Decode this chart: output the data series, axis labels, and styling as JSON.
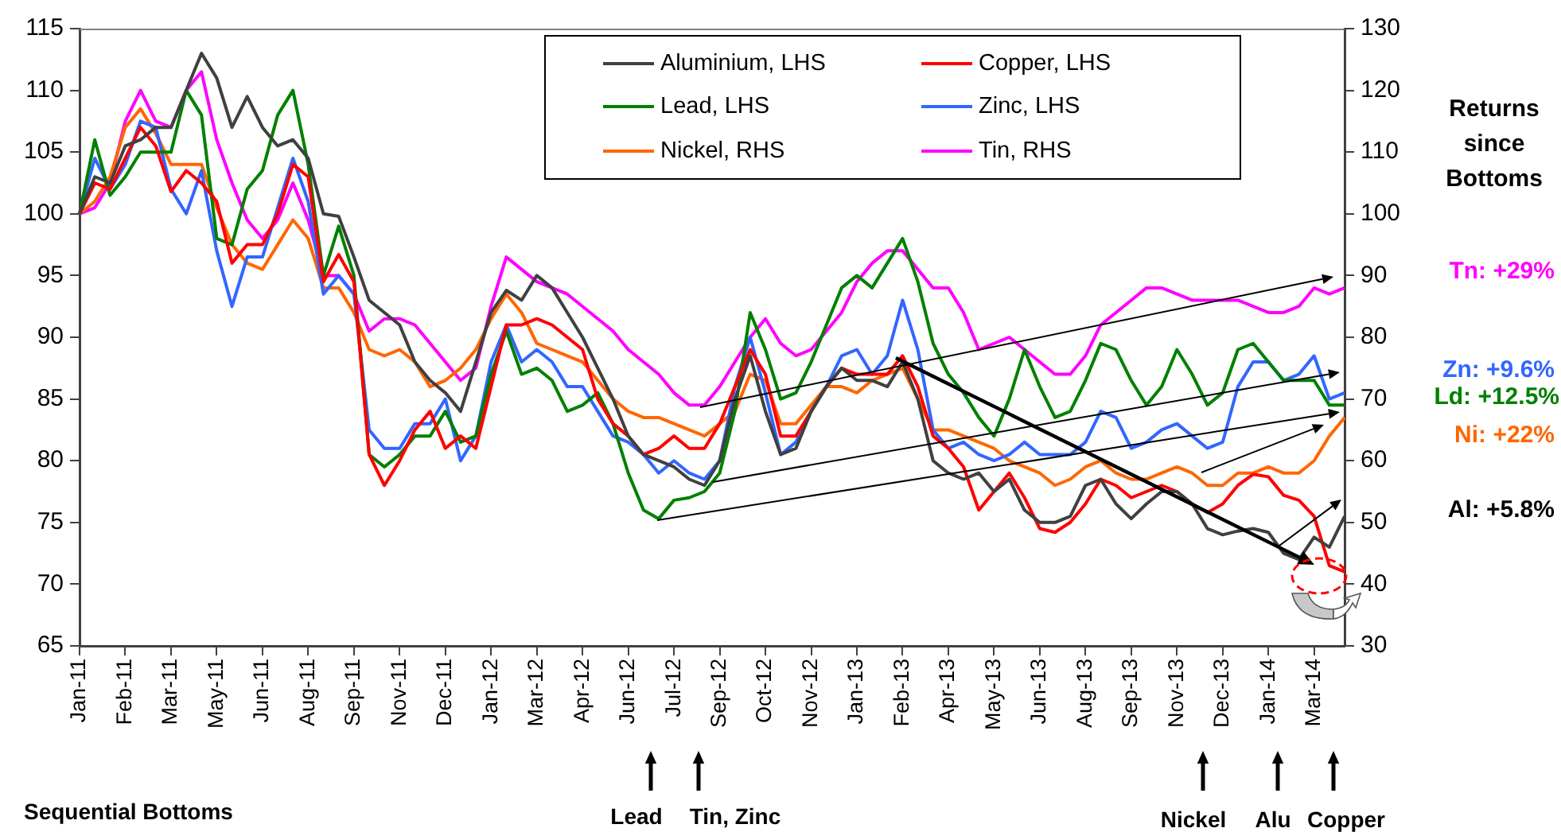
{
  "chart_data": {
    "type": "line",
    "categories": [
      "Jan-11",
      null,
      null,
      "Feb-11",
      null,
      null,
      "Mar-11",
      null,
      null,
      "May-11",
      null,
      null,
      "Jun-11",
      null,
      null,
      "Aug-11",
      null,
      null,
      "Sep-11",
      null,
      null,
      "Nov-11",
      null,
      null,
      "Dec-11",
      null,
      null,
      "Jan-12",
      null,
      null,
      "Mar-12",
      null,
      null,
      "Apr-12",
      null,
      null,
      "Jun-12",
      null,
      null,
      "Jul-12",
      null,
      null,
      "Sep-12",
      null,
      null,
      "Oct-12",
      null,
      null,
      "Nov-12",
      null,
      null,
      "Jan-13",
      null,
      null,
      "Feb-13",
      null,
      null,
      "Apr-13",
      null,
      null,
      "May-13",
      null,
      null,
      "Jun-13",
      null,
      null,
      "Aug-13",
      null,
      null,
      "Sep-13",
      null,
      null,
      "Nov-13",
      null,
      null,
      "Dec-13",
      null,
      null,
      "Jan-14",
      null,
      null,
      "Mar-14",
      null,
      null
    ],
    "series": [
      {
        "name": "Aluminium, LHS",
        "color": "#404040",
        "values": [
          100,
          103,
          102.5,
          105.5,
          106,
          107,
          107,
          110,
          113,
          111,
          107,
          109.5,
          107,
          105.5,
          106,
          104.5,
          100,
          99.8,
          96.5,
          93,
          92,
          91,
          88,
          86.5,
          85.5,
          84,
          88,
          92,
          93.8,
          93,
          95,
          94,
          92,
          90,
          87.5,
          85,
          82,
          80.5,
          80,
          79.5,
          78.5,
          78,
          80,
          85,
          88.5,
          84,
          80.5,
          81,
          84,
          86,
          87.5,
          86.5,
          86.5,
          86,
          88,
          85,
          80,
          79,
          78.5,
          79,
          77.5,
          78.5,
          76,
          75,
          75,
          75.5,
          78,
          78.5,
          76.5,
          75.3,
          76.5,
          77.5,
          77.5,
          76.5,
          74.5,
          74,
          74.3,
          74.5,
          74.2,
          72.5,
          72,
          73.8,
          73,
          75.5
        ]
      },
      {
        "name": "Copper, LHS",
        "color": "#ff0000",
        "values": [
          100,
          102.5,
          102,
          104.5,
          107,
          105.5,
          101.8,
          103.5,
          102.5,
          101,
          96,
          97.5,
          97.5,
          100,
          104,
          103,
          94.5,
          96.7,
          94.5,
          80.5,
          78,
          80,
          82.5,
          84,
          81,
          82,
          81,
          86,
          91,
          91,
          91.5,
          91,
          90,
          89,
          85,
          83,
          82,
          80.5,
          81,
          82,
          81,
          81,
          83,
          86,
          89,
          87,
          82,
          82,
          84,
          86,
          87.5,
          87,
          87,
          87,
          88.5,
          86,
          82,
          81,
          79.5,
          76,
          77.5,
          79,
          77,
          74.5,
          74.2,
          75,
          76.5,
          78.5,
          78,
          77,
          77.5,
          78,
          77.5,
          76.5,
          75.8,
          76.5,
          78,
          78.9,
          78.7,
          77.2,
          76.8,
          75.5,
          71.5,
          71
        ]
      },
      {
        "name": "Lead, LHS",
        "color": "#008000",
        "values": [
          100,
          106,
          101.5,
          103,
          105,
          105,
          105,
          110,
          108,
          98,
          97.5,
          102,
          103.5,
          108,
          110,
          104,
          95,
          99,
          95,
          80.5,
          79.5,
          80.5,
          82,
          82,
          84,
          81.5,
          82,
          87,
          90.5,
          87,
          87.5,
          86.5,
          84,
          84.5,
          85.5,
          83,
          79,
          76,
          75.3,
          76.8,
          77,
          77.5,
          79,
          84,
          92,
          89,
          85,
          85.5,
          88,
          91,
          94,
          95,
          94,
          96,
          98,
          94.5,
          89.5,
          87,
          85.5,
          83.5,
          82,
          85,
          89,
          86,
          83.5,
          84,
          86.5,
          89.5,
          89,
          86.5,
          84.5,
          86,
          89,
          87,
          84.5,
          85.5,
          89,
          89.5,
          88,
          86.5,
          86.5,
          86.5,
          84.5,
          84.5
        ]
      },
      {
        "name": "Zinc, LHS",
        "color": "#3366ff",
        "values": [
          100,
          104.5,
          102,
          104,
          107.5,
          107,
          102,
          100,
          103.5,
          97,
          92.5,
          96.5,
          96.5,
          100.5,
          104.5,
          101,
          93.5,
          95,
          93.5,
          82.5,
          81,
          81,
          83,
          83,
          85,
          80,
          82,
          88,
          91,
          88,
          89,
          88,
          86,
          86,
          84,
          82,
          81.5,
          80.5,
          79,
          80,
          79,
          78.5,
          80,
          86,
          90,
          85.5,
          80.5,
          81.5,
          84,
          86,
          88.5,
          89,
          87,
          88.5,
          93,
          89,
          82.5,
          81,
          81.5,
          80.5,
          80,
          80.5,
          81.5,
          80.5,
          80.5,
          80.5,
          81.5,
          84,
          83.5,
          81,
          81.5,
          82.5,
          83,
          82,
          81,
          81.5,
          86,
          88,
          88,
          86.5,
          87,
          88.5,
          85,
          85.5
        ]
      },
      {
        "name": "Nickel, RHS",
        "color": "#ff6600",
        "axis": "y2",
        "values": [
          100,
          102,
          106,
          114,
          117,
          113,
          108,
          108,
          108,
          101,
          95,
          92,
          91,
          95,
          99,
          96,
          88,
          88,
          84,
          78,
          77,
          78,
          76,
          72,
          73,
          75,
          78,
          83,
          87,
          84,
          79,
          78,
          77,
          76,
          73,
          70,
          68,
          67,
          67,
          66,
          65,
          64,
          66,
          68,
          74,
          73,
          66,
          66,
          69,
          72,
          72,
          71,
          73,
          74,
          75,
          70,
          65,
          65,
          64,
          63,
          62,
          60,
          59,
          58,
          56,
          57,
          59,
          60,
          58,
          57,
          57,
          58,
          59,
          58,
          56,
          56,
          58,
          58,
          59,
          58,
          58,
          60,
          64,
          67
        ]
      },
      {
        "name": "Tin, RHS",
        "color": "#ff00ff",
        "axis": "y2",
        "values": [
          100,
          101,
          105,
          115,
          120,
          115,
          114,
          120,
          123,
          112,
          105,
          99,
          96,
          99,
          105,
          99,
          90,
          90,
          87,
          81,
          83,
          83,
          82,
          79,
          76,
          73,
          75,
          85,
          93,
          91,
          89,
          88,
          87,
          85,
          83,
          81,
          78,
          76,
          74,
          71,
          69,
          69,
          72,
          76,
          80,
          83,
          79,
          77,
          78,
          81,
          84,
          89,
          92,
          94,
          94,
          91,
          88,
          88,
          84,
          78,
          79,
          80,
          78,
          76,
          74,
          74,
          77,
          82,
          84,
          86,
          88,
          88,
          87,
          86,
          86,
          86,
          86,
          85,
          84,
          84,
          85,
          88,
          87,
          88
        ]
      }
    ],
    "ylim": [
      65,
      115
    ],
    "yticks": [
      65,
      70,
      75,
      80,
      85,
      90,
      95,
      100,
      105,
      110,
      115
    ],
    "y2lim": [
      30,
      130
    ],
    "y2ticks": [
      30,
      40,
      50,
      60,
      70,
      80,
      90,
      100,
      110,
      120,
      130
    ],
    "legend": "top",
    "annotations": [
      "Returns since Bottoms",
      "Tn: +29%",
      "Zn: +9.6%",
      "Ld: +12.5%",
      "Ni: +22%",
      "Al: +5.8%",
      "Sequential Bottoms",
      "Lead",
      "Tin, Zinc",
      "Nickel",
      "Alu",
      "Copper"
    ]
  }
}
